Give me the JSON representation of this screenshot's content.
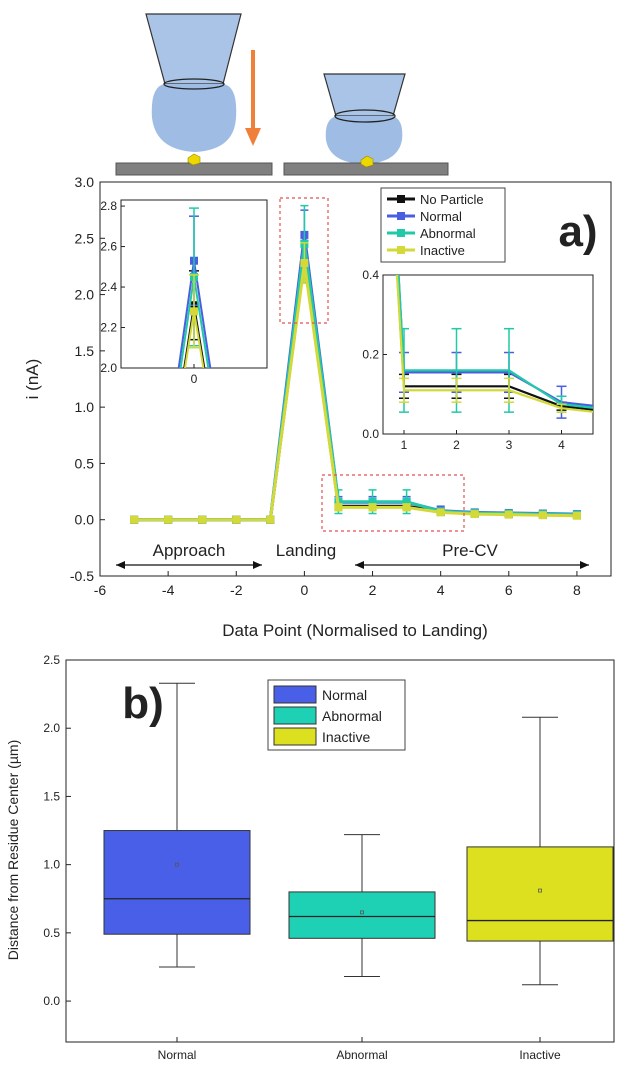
{
  "chart_data": [
    {
      "panel": "a)",
      "type": "line",
      "xlabel": "Data Point (Normalised to Landing)",
      "ylabel": "i (nA)",
      "xlim": [
        -6,
        9
      ],
      "ylim": [
        -0.5,
        3.0
      ],
      "xticks": [
        "-6",
        "-4",
        "-2",
        "0",
        "2",
        "4",
        "6",
        "8"
      ],
      "yticks": [
        "-0.5",
        "0.0",
        "0.5",
        "1.0",
        "1.5",
        "2.0",
        "2.5",
        "3.0"
      ],
      "x": [
        -5,
        -4,
        -3,
        -2,
        -1,
        0,
        1,
        2,
        3,
        4,
        5,
        6,
        7,
        8
      ],
      "series": [
        {
          "name": "No Particle",
          "color": "#111111",
          "values": [
            0,
            0,
            0,
            0,
            0,
            2.31,
            0.12,
            0.12,
            0.12,
            0.07,
            0.055,
            0.05,
            0.045,
            0.04
          ],
          "errors": [
            0.01,
            0.01,
            0.01,
            0.01,
            0.01,
            0.17,
            0.03,
            0.03,
            0.03,
            0.01,
            0.01,
            0.01,
            0.01,
            0.01
          ]
        },
        {
          "name": "Normal",
          "color": "#4a5fe0",
          "values": [
            0,
            0,
            0,
            0,
            0,
            2.53,
            0.155,
            0.155,
            0.155,
            0.08,
            0.065,
            0.06,
            0.055,
            0.05
          ],
          "errors": [
            0.01,
            0.01,
            0.01,
            0.01,
            0.01,
            0.22,
            0.05,
            0.05,
            0.05,
            0.04,
            0.01,
            0.01,
            0.01,
            0.01
          ]
        },
        {
          "name": "Abnormal",
          "color": "#22c9a8",
          "values": [
            0,
            0,
            0,
            0,
            0,
            2.45,
            0.16,
            0.16,
            0.16,
            0.075,
            0.06,
            0.055,
            0.05,
            0.045
          ],
          "errors": [
            0.01,
            0.01,
            0.01,
            0.01,
            0.01,
            0.34,
            0.105,
            0.105,
            0.105,
            0.02,
            0.01,
            0.01,
            0.01,
            0.01
          ]
        },
        {
          "name": "Inactive",
          "color": "#d4d93a",
          "values": [
            0,
            0,
            0,
            0,
            0,
            2.28,
            0.11,
            0.11,
            0.11,
            0.065,
            0.05,
            0.045,
            0.04,
            0.035
          ],
          "errors": [
            0.01,
            0.01,
            0.01,
            0.01,
            0.01,
            0.18,
            0.03,
            0.03,
            0.03,
            0.01,
            0.01,
            0.01,
            0.01,
            0.01
          ]
        }
      ],
      "legend": "top-right",
      "annotations": [
        "Approach",
        "Landing",
        "Pre-CV"
      ],
      "inset_left": {
        "xlim": [
          -1,
          1
        ],
        "ylim": [
          2.0,
          2.83
        ],
        "xticks": [
          "0"
        ],
        "yticks": [
          "2.0",
          "2.2",
          "2.4",
          "2.6",
          "2.8"
        ]
      },
      "inset_right": {
        "xlim": [
          0.6,
          4.6
        ],
        "ylim": [
          0.0,
          0.4
        ],
        "xticks": [
          "1",
          "2",
          "3",
          "4"
        ],
        "yticks": [
          "0.0",
          "0.2",
          "0.4"
        ]
      }
    },
    {
      "panel": "b)",
      "type": "box",
      "ylabel": "Distance from Residue Center (µm)",
      "ylim": [
        -0.3,
        2.5
      ],
      "yticks": [
        "0.0",
        "0.5",
        "1.0",
        "1.5",
        "2.0",
        "2.5"
      ],
      "categories": [
        "Normal",
        "Abnormal",
        "Inactive"
      ],
      "boxes": [
        {
          "name": "Normal",
          "color": "#4a5fe8",
          "min": 0.25,
          "q1": 0.49,
          "median": 0.75,
          "q3": 1.25,
          "max": 2.33,
          "mean": 1.0
        },
        {
          "name": "Abnormal",
          "color": "#1fd1b4",
          "min": 0.18,
          "q1": 0.46,
          "median": 0.62,
          "q3": 0.8,
          "max": 1.22,
          "mean": 0.65
        },
        {
          "name": "Inactive",
          "color": "#dde01e",
          "min": 0.12,
          "q1": 0.44,
          "median": 0.59,
          "q3": 1.13,
          "max": 2.08,
          "mean": 0.81
        }
      ],
      "legend": "top-center"
    }
  ]
}
